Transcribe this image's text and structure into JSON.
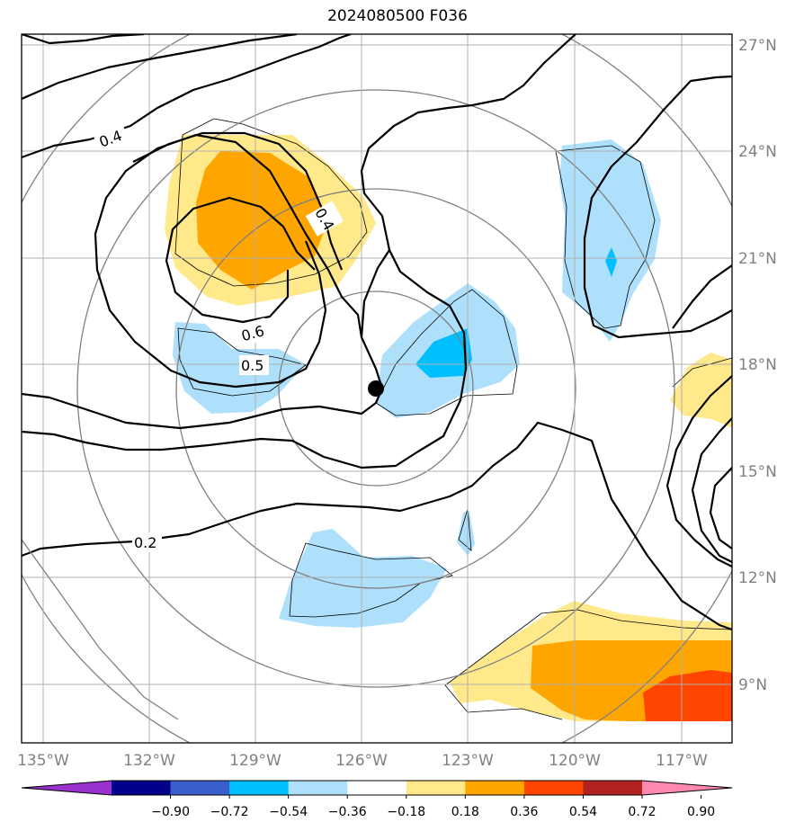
{
  "title": "2024080500 F036",
  "map": {
    "lon_labels": [
      "135°W",
      "132°W",
      "129°W",
      "126°W",
      "123°W",
      "120°W",
      "117°W"
    ],
    "lat_labels": [
      "27°N",
      "24°N",
      "21°N",
      "18°N",
      "15°N",
      "12°N",
      "9°N"
    ],
    "contour_labels": [
      "0.4",
      "0.4",
      "0.6",
      "0.5",
      "0.2"
    ],
    "storm_center": {
      "lon": -125.7,
      "lat": 17.3
    }
  },
  "colorbar": {
    "ticks": [
      "−0.90",
      "−0.72",
      "−0.54",
      "−0.36",
      "−0.18",
      "0.18",
      "0.36",
      "0.54",
      "0.72",
      "0.90"
    ],
    "colors": [
      "#9932cc",
      "#00008b",
      "#3a5fcd",
      "#00bfff",
      "#aee0fc",
      "#ffffff",
      "#ffe98a",
      "#ffa500",
      "#ff4500",
      "#b22222",
      "#ff88b0"
    ]
  }
}
